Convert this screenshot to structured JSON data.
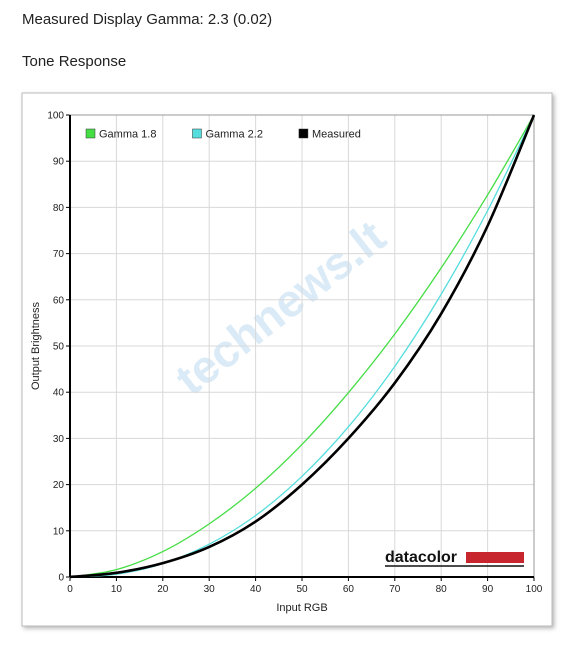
{
  "header": {
    "title": "Measured Display Gamma: 2.3 (0.02)",
    "subtitle": "Tone Response"
  },
  "chart_data": {
    "type": "line",
    "x_label": "Input RGB",
    "y_label": "Output Brightness",
    "x": [
      0,
      10,
      20,
      30,
      40,
      50,
      60,
      70,
      80,
      90,
      100
    ],
    "series": [
      {
        "name": "Gamma 1.8",
        "color": "#44dd44",
        "values": [
          0,
          1.6,
          5.5,
          11.5,
          19.2,
          28.7,
          39.9,
          52.6,
          66.9,
          82.7,
          100
        ]
      },
      {
        "name": "Gamma 2.2",
        "color": "#55dddd",
        "values": [
          0,
          0.6,
          2.9,
          7.1,
          13.3,
          21.8,
          32.5,
          45.6,
          61.2,
          79.3,
          100
        ]
      },
      {
        "name": "Measured",
        "color": "#000000",
        "values": [
          0,
          0.9,
          3,
          6.5,
          12,
          20,
          30,
          42,
          57,
          76,
          100
        ]
      }
    ],
    "xlim": [
      0,
      100
    ],
    "ylim": [
      0,
      100
    ],
    "xticks": [
      0,
      10,
      20,
      30,
      40,
      50,
      60,
      70,
      80,
      90,
      100
    ],
    "yticks": [
      0,
      10,
      20,
      30,
      40,
      50,
      60,
      70,
      80,
      90,
      100
    ],
    "grid": true,
    "legend": "upper left",
    "logo": "datacolor",
    "watermark": "technews.lt"
  }
}
